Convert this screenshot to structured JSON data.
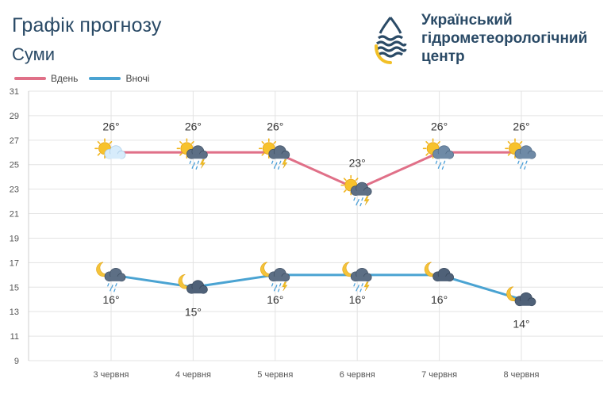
{
  "header": {
    "title": "Графік прогнозу",
    "city": "Суми"
  },
  "org": {
    "line1": "Український",
    "line2": "гідрометеорологічний",
    "line3": "центр",
    "logo_icon": "water-drop-logo-icon"
  },
  "colors": {
    "day": "#e07088",
    "night": "#4aa3d2",
    "grid": "#e3e3e3",
    "axis_text": "#555555",
    "title": "#2a4a66",
    "logo_dark": "#2a4a66",
    "logo_yellow": "#f2c027"
  },
  "chart_data": {
    "type": "line",
    "categories": [
      "3 червня",
      "4 червня",
      "5 червня",
      "6 червня",
      "7 червня",
      "8 червня"
    ],
    "series": [
      {
        "name": "Вдень",
        "values": [
          26,
          26,
          26,
          23,
          26,
          26
        ],
        "labels": [
          "26°",
          "26°",
          "26°",
          "23°",
          "26°",
          "26°"
        ],
        "icons": [
          "sun-cloud-icon",
          "sun-cloud-rain-thunder-icon",
          "sun-cloud-rain-thunder-icon",
          "sun-cloud-rain-thunder-icon",
          "sun-cloud-rain-icon",
          "sun-cloud-rain-icon"
        ]
      },
      {
        "name": "Вночі",
        "values": [
          16,
          15,
          16,
          16,
          16,
          14
        ],
        "labels": [
          "16°",
          "15°",
          "16°",
          "16°",
          "16°",
          "14°"
        ],
        "icons": [
          "moon-cloud-rain-icon",
          "moon-cloud-icon",
          "moon-cloud-rain-thunder-icon",
          "moon-cloud-rain-thunder-icon",
          "moon-cloud-icon",
          "moon-cloud-icon"
        ]
      }
    ],
    "ylim": [
      9,
      31
    ],
    "yticks": [
      9,
      11,
      13,
      15,
      17,
      19,
      21,
      23,
      25,
      27,
      29,
      31
    ],
    "grid": true,
    "legend_position": "top-left"
  }
}
